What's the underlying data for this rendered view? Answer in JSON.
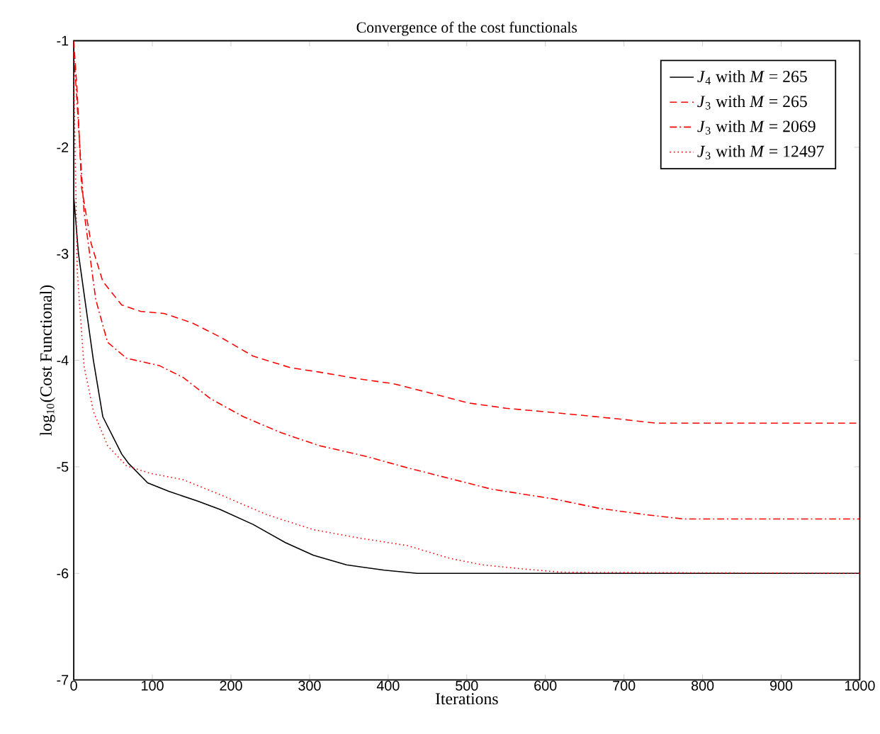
{
  "chart_data": {
    "type": "line",
    "title": "Convergence of the cost functionals",
    "xlabel": "Iterations",
    "ylabel": "log$_{10}$(Cost Functional)",
    "xlim": [
      0,
      1000
    ],
    "ylim": [
      -7,
      -1
    ],
    "xticks": [
      0,
      100,
      200,
      300,
      400,
      500,
      600,
      700,
      800,
      900,
      1000
    ],
    "yticks": [
      -7,
      -6,
      -5,
      -4,
      -3,
      -2,
      -1
    ],
    "grid": false,
    "legend": "top right",
    "marker": "none",
    "series": [
      {
        "name": "*J*$_{4}$ with *M* = 265",
        "color": "#000000",
        "line_style": "solid",
        "x": [
          0,
          6,
          25,
          37,
          61,
          70,
          94,
          121,
          157,
          186,
          228,
          269,
          305,
          347,
          395,
          437,
          1000
        ],
        "values": [
          -2.46,
          -3.0,
          -4.0,
          -4.53,
          -4.88,
          -4.97,
          -5.15,
          -5.23,
          -5.32,
          -5.4,
          -5.54,
          -5.71,
          -5.83,
          -5.92,
          -5.97,
          -6.0,
          -6.0
        ]
      },
      {
        "name": "*J*$_{3}$ with *M* = 265",
        "color": "#ff0000",
        "line_style": "dashed",
        "x": [
          0,
          4.5,
          10,
          22,
          37,
          61,
          85,
          115,
          151,
          186,
          228,
          276,
          312,
          359,
          407,
          455,
          502,
          550,
          610,
          693,
          741,
          1000
        ],
        "values": [
          -1.0,
          -1.5,
          -2.38,
          -2.9,
          -3.26,
          -3.48,
          -3.54,
          -3.56,
          -3.65,
          -3.78,
          -3.96,
          -4.07,
          -4.11,
          -4.17,
          -4.22,
          -4.31,
          -4.4,
          -4.45,
          -4.49,
          -4.55,
          -4.59,
          -4.59
        ]
      },
      {
        "name": "*J*$_{3}$ with *M* = 2069",
        "color": "#ff0000",
        "line_style": "dashdot",
        "x": [
          0,
          13,
          28,
          43,
          67,
          109,
          139,
          174,
          216,
          264,
          312,
          371,
          425,
          484,
          532,
          610,
          669,
          729,
          777,
          1000
        ],
        "values": [
          -1.1,
          -2.6,
          -3.43,
          -3.83,
          -3.98,
          -4.05,
          -4.16,
          -4.36,
          -4.53,
          -4.68,
          -4.8,
          -4.9,
          -5.01,
          -5.12,
          -5.21,
          -5.3,
          -5.39,
          -5.45,
          -5.49,
          -5.49
        ]
      },
      {
        "name": "*J*$_{3}$ with *M* = 12497",
        "color": "#ff0000",
        "line_style": "dotted",
        "x": [
          0,
          4.5,
          13,
          25,
          43,
          67,
          97,
          139,
          186,
          246,
          305,
          365,
          425,
          479,
          520,
          574,
          622,
          1000
        ],
        "values": [
          -1.3,
          -3.17,
          -4.05,
          -4.48,
          -4.8,
          -4.99,
          -5.06,
          -5.12,
          -5.26,
          -5.45,
          -5.59,
          -5.67,
          -5.74,
          -5.86,
          -5.92,
          -5.96,
          -5.99,
          -6.0
        ]
      }
    ]
  }
}
